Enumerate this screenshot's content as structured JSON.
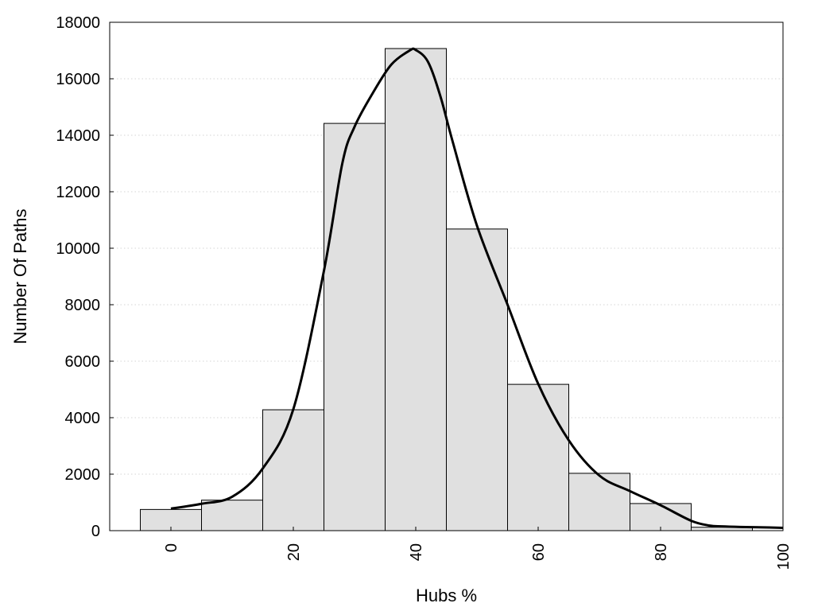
{
  "chart_data": {
    "type": "bar",
    "subtype": "histogram-with-density-curve",
    "title": "",
    "xlabel": "Hubs %",
    "ylabel": "Number Of Paths",
    "xlim": [
      -10,
      100
    ],
    "ylim": [
      0,
      18000
    ],
    "x_ticks": [
      "0",
      "20",
      "40",
      "60",
      "80",
      "100"
    ],
    "x_tick_values": [
      0,
      20,
      40,
      60,
      80,
      100
    ],
    "y_ticks": [
      "0",
      "2000",
      "4000",
      "6000",
      "8000",
      "10000",
      "12000",
      "14000",
      "16000",
      "18000"
    ],
    "y_tick_values": [
      0,
      2000,
      4000,
      6000,
      8000,
      10000,
      12000,
      14000,
      16000,
      18000
    ],
    "grid": "horizontal dotted",
    "bin_width": 10,
    "bins": [
      {
        "center": 0,
        "value": 750
      },
      {
        "center": 10,
        "value": 1080
      },
      {
        "center": 20,
        "value": 4280
      },
      {
        "center": 30,
        "value": 14420
      },
      {
        "center": 40,
        "value": 17070
      },
      {
        "center": 50,
        "value": 10680
      },
      {
        "center": 60,
        "value": 5180
      },
      {
        "center": 70,
        "value": 2030
      },
      {
        "center": 80,
        "value": 960
      },
      {
        "center": 90,
        "value": 120
      }
    ],
    "curve": {
      "x": [
        0,
        5,
        10,
        15,
        20,
        25,
        28,
        30,
        33,
        36,
        39,
        40,
        42,
        44,
        46,
        50,
        55,
        60,
        65,
        70,
        75,
        80,
        85,
        88,
        90,
        93,
        96,
        100
      ],
      "y": [
        780,
        950,
        1200,
        2200,
        4300,
        9200,
        13000,
        14300,
        15500,
        16500,
        17000,
        17020,
        16600,
        15400,
        13800,
        10800,
        8000,
        5200,
        3200,
        1950,
        1400,
        900,
        350,
        180,
        150,
        130,
        120,
        100
      ]
    },
    "colors": {
      "bar_fill": "#e0e0e0",
      "bar_stroke": "#000000",
      "curve": "#000000",
      "grid": "#d4d4d4"
    }
  }
}
